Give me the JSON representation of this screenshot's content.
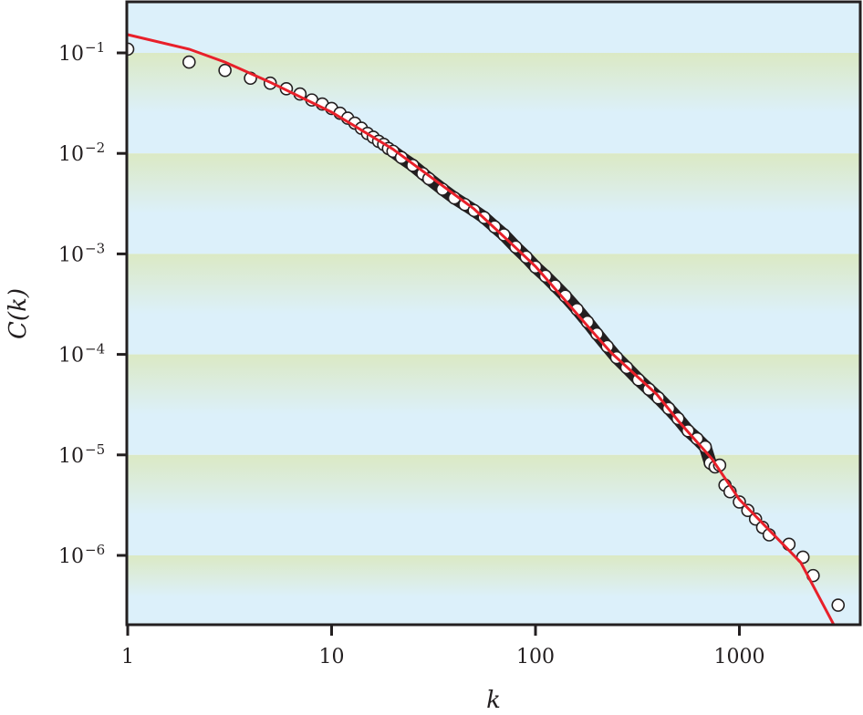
{
  "chart_data": {
    "type": "scatter",
    "title": "",
    "xlabel": "k",
    "ylabel": "C(k)",
    "xscale": "log",
    "yscale": "log",
    "xlim": [
      1,
      4000
    ],
    "ylim": [
      2e-07,
      0.32
    ],
    "x_ticks": [
      {
        "value": 1,
        "label": "1"
      },
      {
        "value": 10,
        "label": "10"
      },
      {
        "value": 100,
        "label": "100"
      },
      {
        "value": 1000,
        "label": "1000"
      }
    ],
    "y_ticks": [
      {
        "value": 0.1,
        "base": "10",
        "exp": "−1"
      },
      {
        "value": 0.01,
        "base": "10",
        "exp": "−2"
      },
      {
        "value": 0.001,
        "base": "10",
        "exp": "−3"
      },
      {
        "value": 0.0001,
        "base": "10",
        "exp": "−4"
      },
      {
        "value": 1e-05,
        "base": "10",
        "exp": "−5"
      },
      {
        "value": 1e-06,
        "base": "10",
        "exp": "−6"
      }
    ],
    "background": "alternating green-to-blue gradient bands per decade",
    "colors": {
      "fit": "#e8202a",
      "marker_fill": "#ffffff",
      "marker_edge": "#231f20",
      "band_green": "#dbe9c4",
      "band_blue": "#dcf0fa",
      "frame": "#231f20"
    },
    "series": [
      {
        "name": "data",
        "kind": "scatter",
        "marker": "open-circle",
        "points": [
          [
            1,
            0.109
          ],
          [
            2,
            0.081
          ],
          [
            3,
            0.067
          ],
          [
            4,
            0.056
          ],
          [
            5,
            0.05
          ],
          [
            6,
            0.044
          ],
          [
            7,
            0.039
          ],
          [
            8,
            0.034
          ],
          [
            9,
            0.031
          ],
          [
            10,
            0.028
          ],
          [
            11,
            0.0251
          ],
          [
            12,
            0.0224
          ],
          [
            13,
            0.02
          ],
          [
            14,
            0.0178
          ],
          [
            15,
            0.0158
          ],
          [
            16,
            0.0145
          ],
          [
            17,
            0.0132
          ],
          [
            18,
            0.0123
          ],
          [
            19,
            0.0112
          ],
          [
            20,
            0.0105
          ],
          [
            22,
            0.0091
          ],
          [
            25,
            0.0076
          ],
          [
            28,
            0.0063
          ],
          [
            30,
            0.0056
          ],
          [
            35,
            0.0044
          ],
          [
            40,
            0.0036
          ],
          [
            45,
            0.0031
          ],
          [
            50,
            0.0027
          ],
          [
            56,
            0.0023
          ],
          [
            63,
            0.00186
          ],
          [
            70,
            0.00155
          ],
          [
            80,
            0.00117
          ],
          [
            90,
            0.00093
          ],
          [
            100,
            0.00074
          ],
          [
            112,
            0.0006
          ],
          [
            125,
            0.00048
          ],
          [
            140,
            0.00038
          ],
          [
            160,
            0.00028
          ],
          [
            180,
            0.00021
          ],
          [
            200,
            0.00016
          ],
          [
            225,
            0.00012
          ],
          [
            250,
            9.3e-05
          ],
          [
            280,
            7.4e-05
          ],
          [
            320,
            5.6e-05
          ],
          [
            360,
            4.5e-05
          ],
          [
            400,
            3.7e-05
          ],
          [
            450,
            2.9e-05
          ],
          [
            500,
            2.3e-05
          ],
          [
            560,
            1.74e-05
          ],
          [
            620,
            1.45e-05
          ],
          [
            680,
            1.2e-05
          ],
          [
            720,
            8.3e-06
          ],
          [
            760,
            7.6e-06
          ],
          [
            800,
            7.9e-06
          ],
          [
            850,
            5e-06
          ],
          [
            900,
            4.3e-06
          ],
          [
            1000,
            3.4e-06
          ],
          [
            1100,
            2.8e-06
          ],
          [
            1200,
            2.3e-06
          ],
          [
            1300,
            1.9e-06
          ],
          [
            1400,
            1.6e-06
          ],
          [
            1750,
            1.29e-06
          ],
          [
            2050,
            9.6e-07
          ],
          [
            2300,
            6.3e-07
          ],
          [
            3050,
            3.2e-07
          ]
        ]
      },
      {
        "name": "fit",
        "kind": "line",
        "points": [
          [
            1,
            0.152
          ],
          [
            2,
            0.109
          ],
          [
            3,
            0.081
          ],
          [
            5,
            0.051
          ],
          [
            10,
            0.0257
          ],
          [
            20,
            0.011
          ],
          [
            50,
            0.0028
          ],
          [
            75,
            0.0013
          ],
          [
            100,
            0.00075
          ],
          [
            200,
            0.00015
          ],
          [
            235,
            0.000104
          ],
          [
            394,
            4e-05
          ],
          [
            500,
            2.2e-05
          ],
          [
            731,
            9.2e-06
          ],
          [
            1000,
            3.6e-06
          ],
          [
            2000,
            8.5e-07
          ],
          [
            2920,
            2e-07
          ]
        ]
      }
    ]
  }
}
